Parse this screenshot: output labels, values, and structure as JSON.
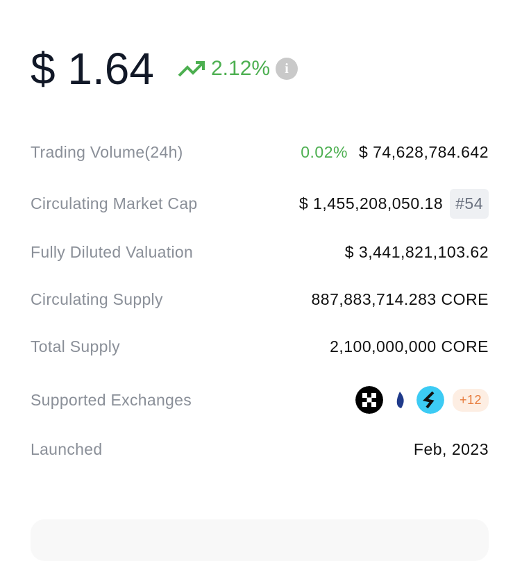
{
  "price": "$ 1.64",
  "change": "2.12%",
  "rows": [
    {
      "label": "Trading Volume(24h)",
      "extra": "0.02%",
      "value": "$ 74,628,784.642"
    },
    {
      "label": "Circulating Market Cap",
      "value": "$ 1,455,208,050.18",
      "rank": "#54"
    },
    {
      "label": "Fully Diluted Valuation",
      "value": "$ 3,441,821,103.62"
    },
    {
      "label": "Circulating Supply",
      "value": "887,883,714.283 CORE"
    },
    {
      "label": "Total Supply",
      "value": "2,100,000,000 CORE"
    },
    {
      "label": "Supported Exchanges",
      "more": "+12"
    },
    {
      "label": "Launched",
      "value": "Feb, 2023"
    }
  ]
}
